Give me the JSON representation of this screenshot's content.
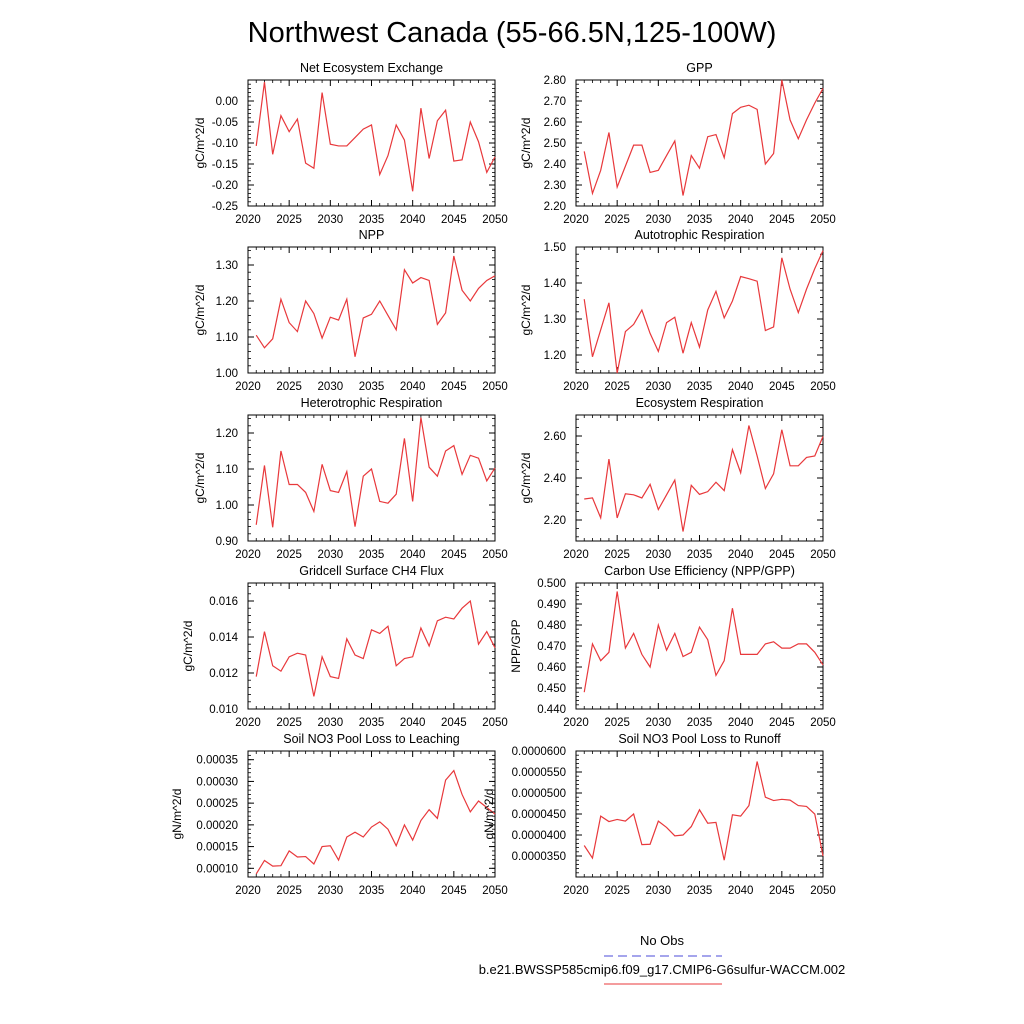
{
  "figure": {
    "title": "Northwest Canada (55-66.5N,125-100W)",
    "legend": [
      {
        "label": "No Obs",
        "color": "#4b4bd8",
        "style": "dashed"
      },
      {
        "label": "b.e21.BWSSP585cmip6.f09_g17.CMIP6-G6sulfur-WACCM.002",
        "color": "#e8383b",
        "style": "solid"
      }
    ]
  },
  "chart_data": [
    {
      "type": "line",
      "title": "Net Ecosystem Exchange",
      "ylabel": "gC/m^2/d",
      "xlim": [
        2020,
        2050
      ],
      "ylim": [
        -0.25,
        0.05
      ],
      "xticks": [
        "2020",
        "2025",
        "2030",
        "2035",
        "2040",
        "2045",
        "2050"
      ],
      "xtick_values": [
        2020,
        2025,
        2030,
        2035,
        2040,
        2045,
        2050
      ],
      "yticks": [
        "-0.25",
        "-0.20",
        "-0.15",
        "-0.10",
        "-0.05",
        "0.00"
      ],
      "ytick_values": [
        -0.25,
        -0.2,
        -0.15,
        -0.1,
        -0.05,
        0.0
      ],
      "x_start": 2021,
      "values": [
        -0.107,
        0.045,
        -0.127,
        -0.035,
        -0.073,
        -0.043,
        -0.148,
        -0.16,
        0.02,
        -0.103,
        -0.107,
        -0.107,
        -0.087,
        -0.067,
        -0.057,
        -0.175,
        -0.13,
        -0.057,
        -0.093,
        -0.215,
        -0.017,
        -0.137,
        -0.047,
        -0.022,
        -0.143,
        -0.14,
        -0.05,
        -0.097,
        -0.17,
        -0.133
      ],
      "color": "#e8383b"
    },
    {
      "type": "line",
      "title": "GPP",
      "ylabel": "gC/m^2/d",
      "xlim": [
        2020,
        2050
      ],
      "ylim": [
        2.2,
        2.8
      ],
      "xticks": [
        "2020",
        "2025",
        "2030",
        "2035",
        "2040",
        "2045",
        "2050"
      ],
      "xtick_values": [
        2020,
        2025,
        2030,
        2035,
        2040,
        2045,
        2050
      ],
      "yticks": [
        "2.20",
        "2.30",
        "2.40",
        "2.50",
        "2.60",
        "2.70",
        "2.80"
      ],
      "ytick_values": [
        2.2,
        2.3,
        2.4,
        2.5,
        2.6,
        2.7,
        2.8
      ],
      "x_start": 2021,
      "values": [
        2.46,
        2.26,
        2.37,
        2.55,
        2.29,
        2.39,
        2.49,
        2.49,
        2.36,
        2.37,
        2.44,
        2.51,
        2.25,
        2.44,
        2.38,
        2.53,
        2.54,
        2.43,
        2.64,
        2.67,
        2.68,
        2.66,
        2.4,
        2.45,
        2.8,
        2.61,
        2.52,
        2.61,
        2.69,
        2.76
      ],
      "color": "#e8383b"
    },
    {
      "type": "line",
      "title": "NPP",
      "ylabel": "gC/m^2/d",
      "xlim": [
        2020,
        2050
      ],
      "ylim": [
        1.0,
        1.35
      ],
      "xticks": [
        "2020",
        "2025",
        "2030",
        "2035",
        "2040",
        "2045",
        "2050"
      ],
      "xtick_values": [
        2020,
        2025,
        2030,
        2035,
        2040,
        2045,
        2050
      ],
      "yticks": [
        "1.00",
        "1.10",
        "1.20",
        "1.30"
      ],
      "ytick_values": [
        1.0,
        1.1,
        1.2,
        1.3
      ],
      "x_start": 2021,
      "values": [
        1.105,
        1.07,
        1.095,
        1.205,
        1.14,
        1.115,
        1.2,
        1.165,
        1.097,
        1.155,
        1.147,
        1.205,
        1.045,
        1.153,
        1.163,
        1.2,
        1.16,
        1.12,
        1.287,
        1.25,
        1.265,
        1.257,
        1.135,
        1.167,
        1.325,
        1.23,
        1.2,
        1.235,
        1.257,
        1.27
      ],
      "color": "#e8383b"
    },
    {
      "type": "line",
      "title": "Autotrophic Respiration",
      "ylabel": "gC/m^2/d",
      "xlim": [
        2020,
        2050
      ],
      "ylim": [
        1.15,
        1.5
      ],
      "xticks": [
        "2020",
        "2025",
        "2030",
        "2035",
        "2040",
        "2045",
        "2050"
      ],
      "xtick_values": [
        2020,
        2025,
        2030,
        2035,
        2040,
        2045,
        2050
      ],
      "yticks": [
        "1.20",
        "1.30",
        "1.40",
        "1.50"
      ],
      "ytick_values": [
        1.2,
        1.3,
        1.4,
        1.5
      ],
      "x_start": 2021,
      "values": [
        1.355,
        1.195,
        1.27,
        1.345,
        1.15,
        1.265,
        1.285,
        1.325,
        1.26,
        1.21,
        1.29,
        1.305,
        1.205,
        1.29,
        1.222,
        1.325,
        1.377,
        1.303,
        1.35,
        1.418,
        1.412,
        1.405,
        1.268,
        1.278,
        1.47,
        1.383,
        1.318,
        1.383,
        1.44,
        1.49
      ],
      "color": "#e8383b"
    },
    {
      "type": "line",
      "title": "Heterotrophic Respiration",
      "ylabel": "gC/m^2/d",
      "xlim": [
        2020,
        2050
      ],
      "ylim": [
        0.9,
        1.25
      ],
      "xticks": [
        "2020",
        "2025",
        "2030",
        "2035",
        "2040",
        "2045",
        "2050"
      ],
      "xtick_values": [
        2020,
        2025,
        2030,
        2035,
        2040,
        2045,
        2050
      ],
      "yticks": [
        "0.90",
        "1.00",
        "1.10",
        "1.20"
      ],
      "ytick_values": [
        0.9,
        1.0,
        1.1,
        1.2
      ],
      "x_start": 2021,
      "values": [
        0.945,
        1.11,
        0.938,
        1.15,
        1.057,
        1.057,
        1.035,
        0.982,
        1.113,
        1.04,
        1.035,
        1.093,
        0.94,
        1.08,
        1.1,
        1.01,
        1.005,
        1.03,
        1.185,
        1.01,
        1.243,
        1.105,
        1.08,
        1.15,
        1.165,
        1.085,
        1.138,
        1.13,
        1.067,
        1.103
      ],
      "color": "#e8383b"
    },
    {
      "type": "line",
      "title": "Ecosystem Respiration",
      "ylabel": "gC/m^2/d",
      "xlim": [
        2020,
        2050
      ],
      "ylim": [
        2.1,
        2.7
      ],
      "xticks": [
        "2020",
        "2025",
        "2030",
        "2035",
        "2040",
        "2045",
        "2050"
      ],
      "xtick_values": [
        2020,
        2025,
        2030,
        2035,
        2040,
        2045,
        2050
      ],
      "yticks": [
        "2.20",
        "2.40",
        "2.60"
      ],
      "ytick_values": [
        2.2,
        2.4,
        2.6
      ],
      "x_start": 2021,
      "values": [
        2.3,
        2.305,
        2.21,
        2.49,
        2.21,
        2.325,
        2.32,
        2.305,
        2.37,
        2.25,
        2.32,
        2.39,
        2.145,
        2.365,
        2.322,
        2.335,
        2.38,
        2.34,
        2.535,
        2.425,
        2.65,
        2.505,
        2.35,
        2.42,
        2.63,
        2.458,
        2.458,
        2.498,
        2.505,
        2.598
      ],
      "color": "#e8383b"
    },
    {
      "type": "line",
      "title": "Gridcell Surface CH4 Flux",
      "ylabel": "gC/m^2/d",
      "xlim": [
        2020,
        2050
      ],
      "ylim": [
        0.01,
        0.017
      ],
      "xticks": [
        "2020",
        "2025",
        "2030",
        "2035",
        "2040",
        "2045",
        "2050"
      ],
      "xtick_values": [
        2020,
        2025,
        2030,
        2035,
        2040,
        2045,
        2050
      ],
      "yticks": [
        "0.010",
        "0.012",
        "0.014",
        "0.016"
      ],
      "ytick_values": [
        0.01,
        0.012,
        0.014,
        0.016
      ],
      "x_start": 2021,
      "values": [
        0.0118,
        0.0143,
        0.0124,
        0.0121,
        0.0129,
        0.0131,
        0.013,
        0.0107,
        0.0129,
        0.0118,
        0.0117,
        0.0139,
        0.013,
        0.0128,
        0.0144,
        0.0142,
        0.0146,
        0.0124,
        0.0128,
        0.0129,
        0.0145,
        0.0135,
        0.0149,
        0.0151,
        0.015,
        0.0156,
        0.016,
        0.0136,
        0.0143,
        0.0134
      ],
      "color": "#e8383b"
    },
    {
      "type": "line",
      "title": "Carbon Use Efficiency (NPP/GPP)",
      "ylabel": "NPP/GPP",
      "xlim": [
        2020,
        2050
      ],
      "ylim": [
        0.44,
        0.5
      ],
      "xticks": [
        "2020",
        "2025",
        "2030",
        "2035",
        "2040",
        "2045",
        "2050"
      ],
      "xtick_values": [
        2020,
        2025,
        2030,
        2035,
        2040,
        2045,
        2050
      ],
      "yticks": [
        "0.440",
        "0.450",
        "0.460",
        "0.470",
        "0.480",
        "0.490",
        "0.500"
      ],
      "ytick_values": [
        0.44,
        0.45,
        0.46,
        0.47,
        0.48,
        0.49,
        0.5
      ],
      "x_start": 2021,
      "values": [
        0.448,
        0.471,
        0.463,
        0.467,
        0.496,
        0.469,
        0.476,
        0.466,
        0.46,
        0.48,
        0.468,
        0.476,
        0.465,
        0.467,
        0.479,
        0.473,
        0.456,
        0.463,
        0.488,
        0.466,
        0.466,
        0.466,
        0.471,
        0.472,
        0.469,
        0.469,
        0.471,
        0.471,
        0.467,
        0.461
      ],
      "color": "#e8383b"
    },
    {
      "type": "line",
      "title": "Soil NO3 Pool Loss to Leaching",
      "ylabel": "gN/m^2/d",
      "xlim": [
        2020,
        2050
      ],
      "ylim": [
        8e-05,
        0.00037
      ],
      "xticks": [
        "2020",
        "2025",
        "2030",
        "2035",
        "2040",
        "2045",
        "2050"
      ],
      "xtick_values": [
        2020,
        2025,
        2030,
        2035,
        2040,
        2045,
        2050
      ],
      "yticks": [
        "0.00010",
        "0.00015",
        "0.00020",
        "0.00025",
        "0.00030",
        "0.00035"
      ],
      "ytick_values": [
        0.0001,
        0.00015,
        0.0002,
        0.00025,
        0.0003,
        0.00035
      ],
      "x_start": 2021,
      "values": [
        8.7e-05,
        0.000118,
        0.000105,
        0.000106,
        0.00014,
        0.000126,
        0.000127,
        0.00011,
        0.00015,
        0.000152,
        0.000119,
        0.000172,
        0.000183,
        0.000172,
        0.000195,
        0.000207,
        0.00019,
        0.000152,
        0.0002,
        0.000165,
        0.00021,
        0.000235,
        0.000215,
        0.000303,
        0.000325,
        0.00027,
        0.00023,
        0.000255,
        0.00024,
        0.000225
      ],
      "color": "#e8383b"
    },
    {
      "type": "line",
      "title": "Soil NO3 Pool Loss to Runoff",
      "ylabel": "gN/m^2/d",
      "xlim": [
        2020,
        2050
      ],
      "ylim": [
        3e-05,
        6e-05
      ],
      "xticks": [
        "2020",
        "2025",
        "2030",
        "2035",
        "2040",
        "2045",
        "2050"
      ],
      "xtick_values": [
        2020,
        2025,
        2030,
        2035,
        2040,
        2045,
        2050
      ],
      "yticks": [
        "0.0000350",
        "0.0000400",
        "0.0000450",
        "0.0000500",
        "0.0000550",
        "0.0000600"
      ],
      "ytick_values": [
        3.5e-05,
        4e-05,
        4.5e-05,
        5e-05,
        5.5e-05,
        6e-05
      ],
      "x_start": 2021,
      "values": [
        3.75e-05,
        3.45e-05,
        4.45e-05,
        4.32e-05,
        4.37e-05,
        4.33e-05,
        4.5e-05,
        3.77e-05,
        3.78e-05,
        4.33e-05,
        4.18e-05,
        3.98e-05,
        4e-05,
        4.2e-05,
        4.6e-05,
        4.28e-05,
        4.3e-05,
        3.4e-05,
        4.48e-05,
        4.45e-05,
        4.7e-05,
        5.75e-05,
        4.9e-05,
        4.82e-05,
        4.85e-05,
        4.83e-05,
        4.7e-05,
        4.68e-05,
        4.5e-05,
        3.5e-05
      ],
      "color": "#e8383b"
    }
  ]
}
